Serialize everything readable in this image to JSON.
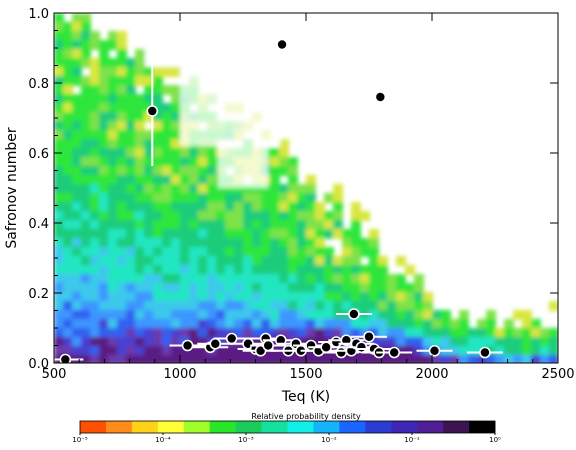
{
  "chart_data": {
    "type": "heatmap",
    "title": "",
    "xlabel": "Teq (K)",
    "ylabel": "Safronov number",
    "xlim": [
      500,
      2500
    ],
    "ylim": [
      0.0,
      1.0
    ],
    "x_ticks": [
      "500",
      "1000",
      "1500",
      "2000",
      "2500"
    ],
    "y_ticks": [
      "0.0",
      "0.2",
      "0.4",
      "0.6",
      "0.8",
      "1.0"
    ],
    "grid": false,
    "density_description_levels": {
      "outer_contour_color": "#e6e600",
      "cells": "probability density field"
    },
    "colorbar": {
      "title": "Relative probability density",
      "scale": "log",
      "ticks": [
        "10⁻⁵",
        "10⁻⁴",
        "10⁻³",
        "10⁻²",
        "10⁻¹",
        "10⁰"
      ],
      "colors": [
        "#ff5000",
        "#ff8c1a",
        "#ffd21a",
        "#ffff33",
        "#a0ff2a",
        "#28e628",
        "#1acc5a",
        "#16e0a0",
        "#10f0e6",
        "#14b4ff",
        "#1a64ff",
        "#2a3cd2",
        "#3c28b4",
        "#501e96",
        "#3c1450",
        "#000000"
      ]
    },
    "series": [
      {
        "type": "scatter",
        "points": [
          {
            "x": 545,
            "y": 0.01
          },
          {
            "x": 890,
            "y": 0.72
          },
          {
            "x": 1405,
            "y": 0.91
          },
          {
            "x": 1795,
            "y": 0.76
          },
          {
            "x": 1030,
            "y": 0.05
          },
          {
            "x": 1120,
            "y": 0.045
          },
          {
            "x": 1140,
            "y": 0.055
          },
          {
            "x": 1205,
            "y": 0.07
          },
          {
            "x": 1270,
            "y": 0.055
          },
          {
            "x": 1300,
            "y": 0.04
          },
          {
            "x": 1320,
            "y": 0.035
          },
          {
            "x": 1340,
            "y": 0.07
          },
          {
            "x": 1350,
            "y": 0.05
          },
          {
            "x": 1400,
            "y": 0.065
          },
          {
            "x": 1430,
            "y": 0.035
          },
          {
            "x": 1460,
            "y": 0.055
          },
          {
            "x": 1480,
            "y": 0.035
          },
          {
            "x": 1520,
            "y": 0.05
          },
          {
            "x": 1550,
            "y": 0.035
          },
          {
            "x": 1580,
            "y": 0.045
          },
          {
            "x": 1620,
            "y": 0.06
          },
          {
            "x": 1640,
            "y": 0.03
          },
          {
            "x": 1660,
            "y": 0.065
          },
          {
            "x": 1680,
            "y": 0.035
          },
          {
            "x": 1690,
            "y": 0.14
          },
          {
            "x": 1700,
            "y": 0.055
          },
          {
            "x": 1720,
            "y": 0.045
          },
          {
            "x": 1750,
            "y": 0.075
          },
          {
            "x": 1770,
            "y": 0.04
          },
          {
            "x": 1790,
            "y": 0.03
          },
          {
            "x": 1850,
            "y": 0.03
          },
          {
            "x": 2010,
            "y": 0.035
          },
          {
            "x": 2210,
            "y": 0.03
          }
        ]
      }
    ]
  }
}
